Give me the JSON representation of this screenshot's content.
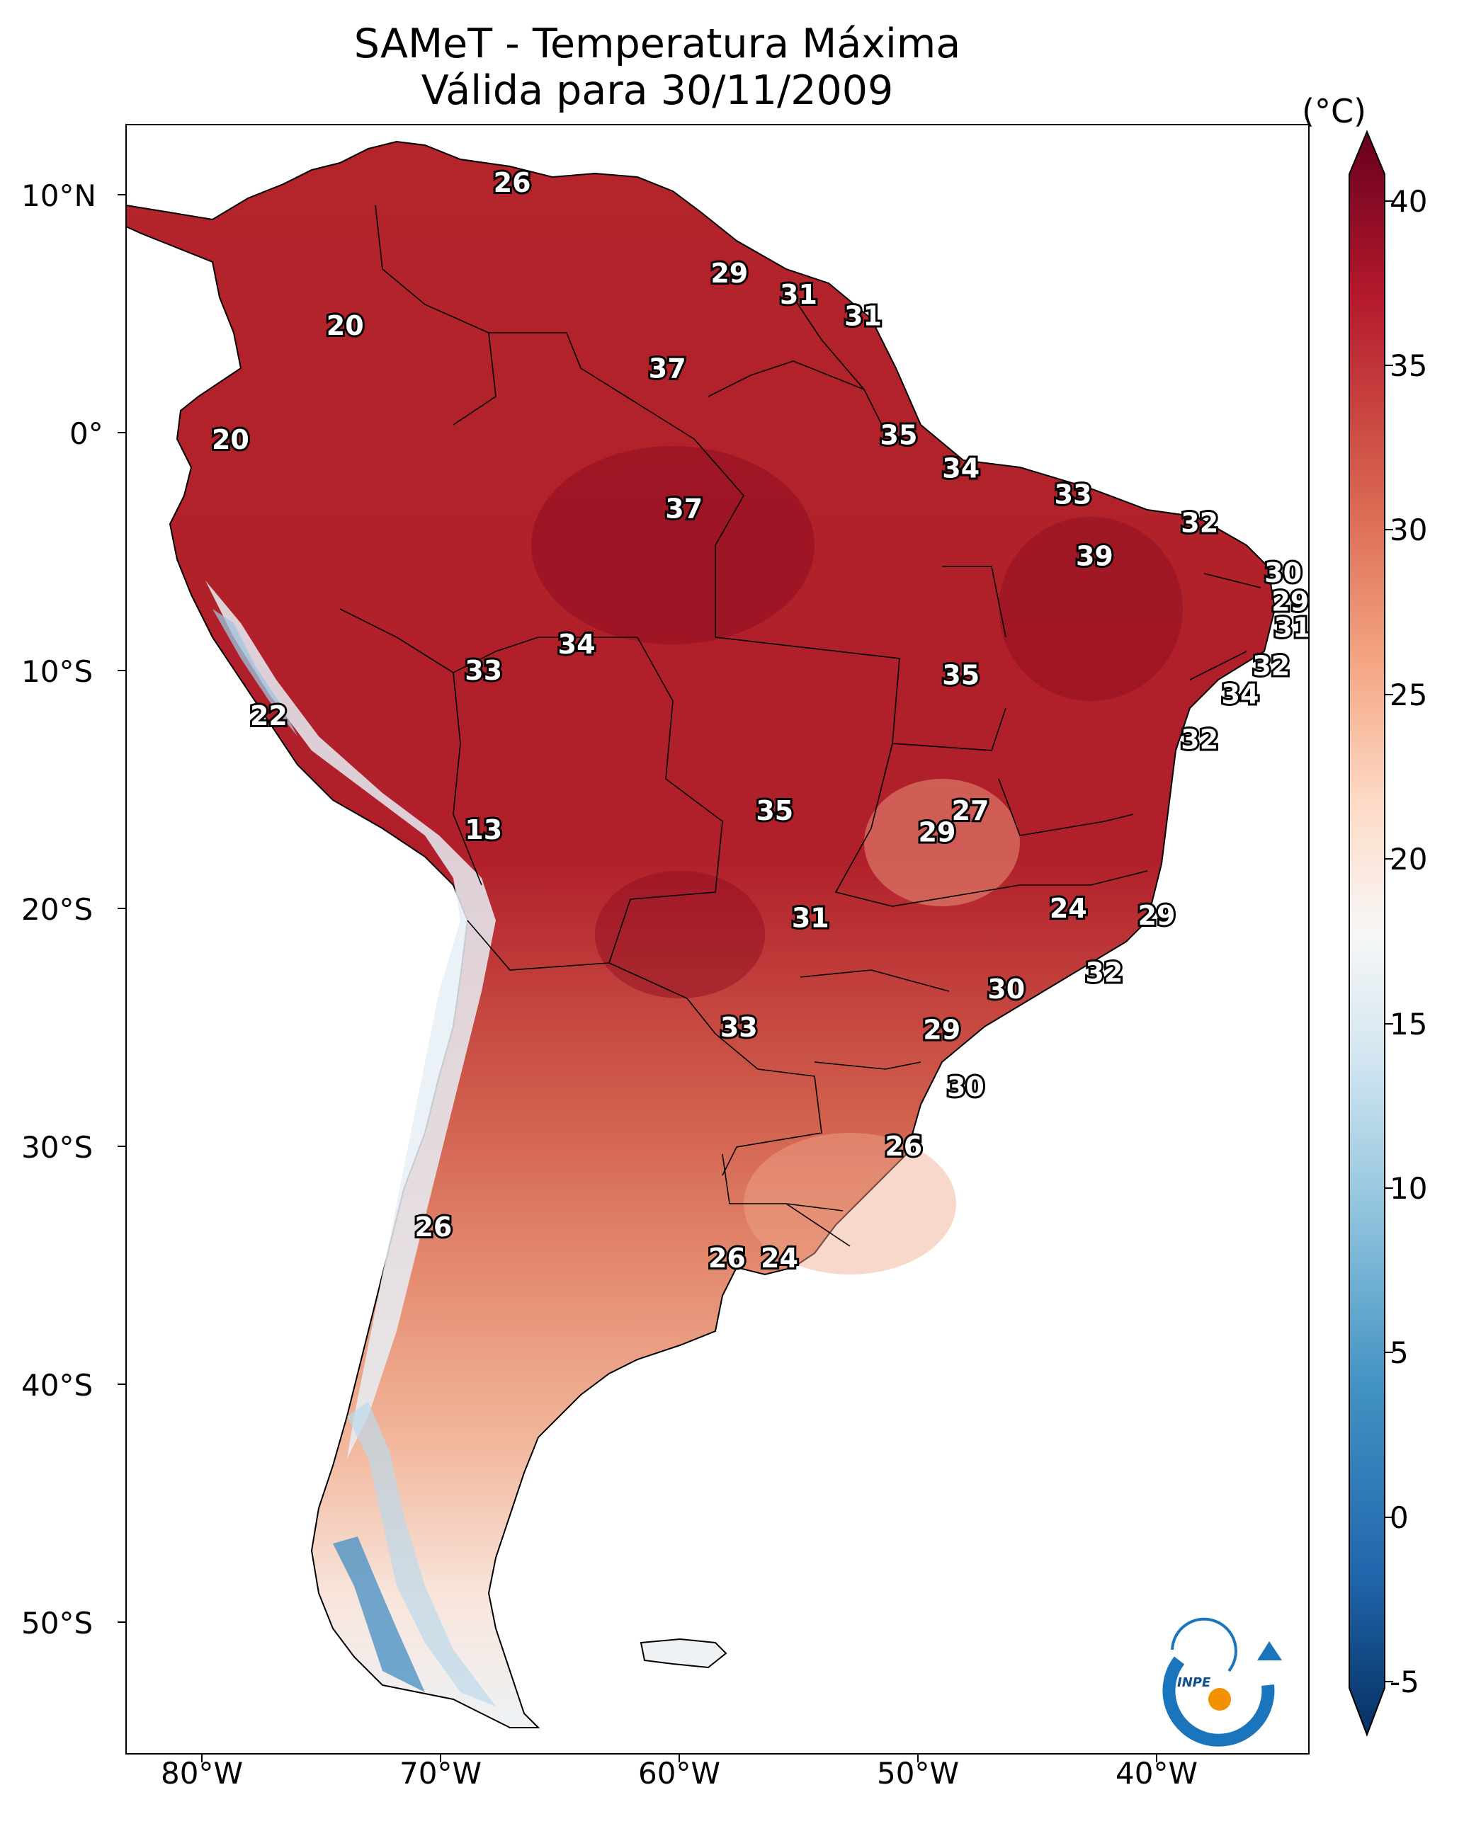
{
  "title": {
    "line1": "SAMeT - Temperatura Máxima",
    "line2": "Válida para 30/11/2009"
  },
  "colorbar": {
    "unit": "(°C)",
    "ticks": [
      "40",
      "35",
      "30",
      "25",
      "20",
      "15",
      "10",
      "5",
      "0",
      "-5"
    ],
    "min": -5,
    "max": 40
  },
  "axes": {
    "lat_labels": [
      "10°N",
      "0°",
      "10°S",
      "20°S",
      "30°S",
      "40°S",
      "50°S"
    ],
    "lon_labels": [
      "80°W",
      "70°W",
      "60°W",
      "50°W",
      "40°W"
    ]
  },
  "logo": {
    "text": "INPE"
  },
  "map_labels": [
    {
      "value": "26",
      "lon": -67.0,
      "lat": 10.5
    },
    {
      "value": "20",
      "lon": -74.0,
      "lat": 4.5
    },
    {
      "value": "29",
      "lon": -57.9,
      "lat": 6.7
    },
    {
      "value": "31",
      "lon": -55.0,
      "lat": 5.8
    },
    {
      "value": "31",
      "lon": -52.3,
      "lat": 4.9
    },
    {
      "value": "37",
      "lon": -60.5,
      "lat": 2.7
    },
    {
      "value": "20",
      "lon": -78.8,
      "lat": -0.3
    },
    {
      "value": "35",
      "lon": -50.8,
      "lat": -0.1
    },
    {
      "value": "34",
      "lon": -48.2,
      "lat": -1.5
    },
    {
      "value": "37",
      "lon": -59.8,
      "lat": -3.2
    },
    {
      "value": "33",
      "lon": -43.5,
      "lat": -2.6
    },
    {
      "value": "32",
      "lon": -38.2,
      "lat": -3.8
    },
    {
      "value": "39",
      "lon": -42.6,
      "lat": -5.2
    },
    {
      "value": "30",
      "lon": -34.7,
      "lat": -5.9
    },
    {
      "value": "29",
      "lon": -34.4,
      "lat": -7.1
    },
    {
      "value": "31",
      "lon": -34.3,
      "lat": -8.2
    },
    {
      "value": "32",
      "lon": -35.2,
      "lat": -9.8
    },
    {
      "value": "34",
      "lon": -36.5,
      "lat": -11.0
    },
    {
      "value": "32",
      "lon": -38.2,
      "lat": -12.9
    },
    {
      "value": "34",
      "lon": -64.3,
      "lat": -8.9
    },
    {
      "value": "33",
      "lon": -68.2,
      "lat": -10.0
    },
    {
      "value": "35",
      "lon": -48.2,
      "lat": -10.2
    },
    {
      "value": "22",
      "lon": -77.2,
      "lat": -11.9
    },
    {
      "value": "35",
      "lon": -56.0,
      "lat": -15.9
    },
    {
      "value": "27",
      "lon": -47.8,
      "lat": -15.9
    },
    {
      "value": "29",
      "lon": -49.2,
      "lat": -16.8
    },
    {
      "value": "13",
      "lon": -68.2,
      "lat": -16.7
    },
    {
      "value": "24",
      "lon": -43.7,
      "lat": -20.0
    },
    {
      "value": "29",
      "lon": -40.0,
      "lat": -20.3
    },
    {
      "value": "31",
      "lon": -54.5,
      "lat": -20.4
    },
    {
      "value": "32",
      "lon": -42.2,
      "lat": -22.7
    },
    {
      "value": "30",
      "lon": -46.3,
      "lat": -23.4
    },
    {
      "value": "33",
      "lon": -57.5,
      "lat": -25.0
    },
    {
      "value": "29",
      "lon": -49.0,
      "lat": -25.1
    },
    {
      "value": "30",
      "lon": -48.0,
      "lat": -27.5
    },
    {
      "value": "26",
      "lon": -50.6,
      "lat": -30.0
    },
    {
      "value": "26",
      "lon": -70.3,
      "lat": -33.4
    },
    {
      "value": "26",
      "lon": -58.0,
      "lat": -34.7
    },
    {
      "value": "24",
      "lon": -55.8,
      "lat": -34.7
    }
  ]
}
